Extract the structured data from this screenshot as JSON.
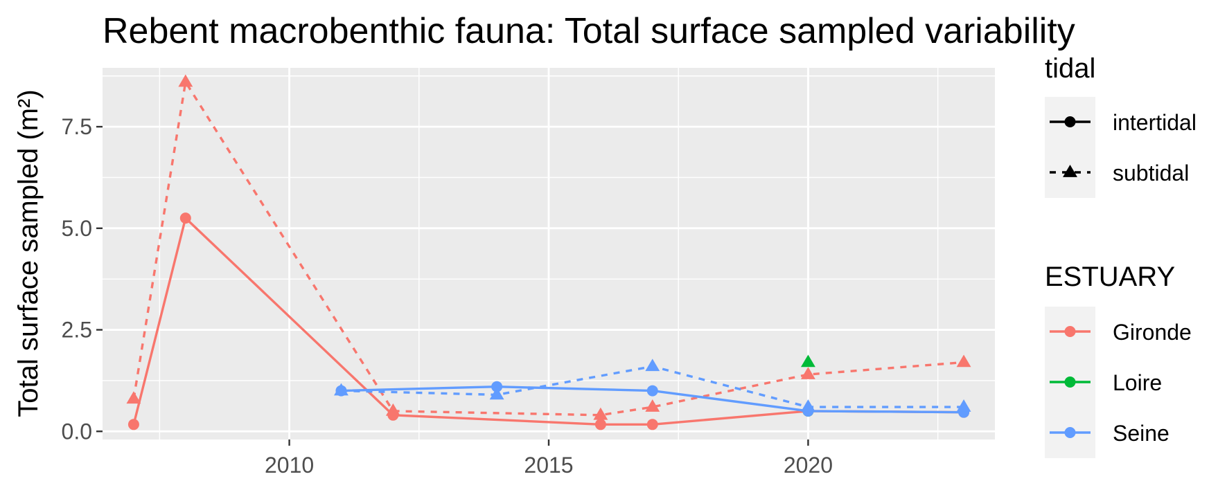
{
  "chart_data": {
    "type": "line",
    "title": "Rebent macrobenthic fauna: Total surface sampled variability",
    "xlabel": "",
    "ylabel": "Total surface sampled (m²)",
    "xlim": [
      2006.4,
      2023.6
    ],
    "ylim": [
      -0.2,
      8.95
    ],
    "x_ticks": [
      2010,
      2015,
      2020
    ],
    "x_tick_labels": [
      "2010",
      "2015",
      "2020"
    ],
    "y_ticks": [
      0,
      2.5,
      5,
      7.5
    ],
    "y_tick_labels": [
      "0.0",
      "2.5",
      "5.0",
      "7.5"
    ],
    "grid": true,
    "legend_placement": "right",
    "legends": {
      "tidal": {
        "title": "tidal",
        "items": [
          {
            "label": "intertidal",
            "linetype": "solid",
            "shape": "circle"
          },
          {
            "label": "subtidal",
            "linetype": "dashed",
            "shape": "triangle"
          }
        ]
      },
      "estuary": {
        "title": "ESTUARY",
        "items": [
          {
            "label": "Gironde",
            "color": "#F8766D"
          },
          {
            "label": "Loire",
            "color": "#00BA38"
          },
          {
            "label": "Seine",
            "color": "#619CFF"
          }
        ]
      }
    },
    "series": [
      {
        "estuary": "Gironde",
        "tidal": "intertidal",
        "color": "#F8766D",
        "x": [
          2007,
          2008,
          2012,
          2016,
          2017,
          2020,
          2023
        ],
        "y": [
          0.17,
          5.25,
          0.4,
          0.17,
          0.17,
          0.5,
          0.47
        ]
      },
      {
        "estuary": "Gironde",
        "tidal": "subtidal",
        "color": "#F8766D",
        "x": [
          2007,
          2008,
          2012,
          2016,
          2017,
          2020,
          2023
        ],
        "y": [
          0.8,
          8.6,
          0.5,
          0.4,
          0.6,
          1.4,
          1.7
        ]
      },
      {
        "estuary": "Loire",
        "tidal": "intertidal",
        "color": "#00BA38",
        "x": [
          2020
        ],
        "y": [
          0.5
        ]
      },
      {
        "estuary": "Loire",
        "tidal": "subtidal",
        "color": "#00BA38",
        "x": [
          2020
        ],
        "y": [
          1.7
        ]
      },
      {
        "estuary": "Seine",
        "tidal": "intertidal",
        "color": "#619CFF",
        "x": [
          2011,
          2014,
          2017,
          2020,
          2023
        ],
        "y": [
          1.0,
          1.1,
          1.0,
          0.5,
          0.47
        ]
      },
      {
        "estuary": "Seine",
        "tidal": "subtidal",
        "color": "#619CFF",
        "x": [
          2011,
          2014,
          2017,
          2020,
          2023
        ],
        "y": [
          1.0,
          0.9,
          1.6,
          0.6,
          0.6
        ]
      }
    ]
  }
}
